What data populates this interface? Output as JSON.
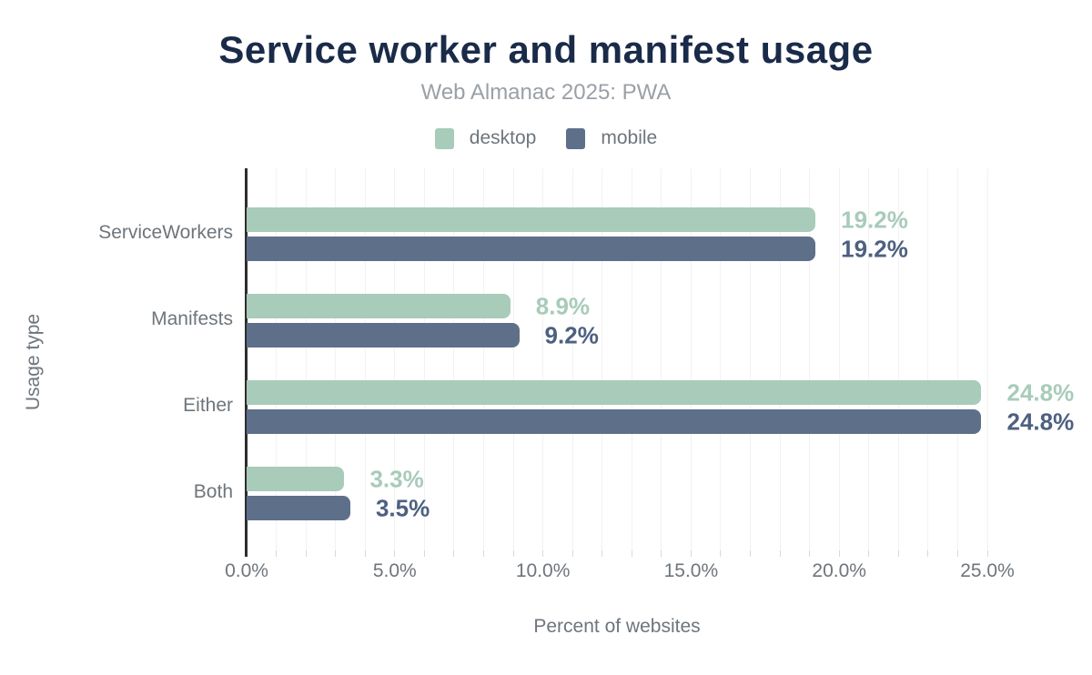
{
  "title": "Service worker and manifest usage",
  "subtitle": "Web Almanac 2025: PWA",
  "colors": {
    "title": "#1a2b49",
    "subtitle": "#9aa0a6",
    "muted_text": "#6e757c",
    "axis_line": "#2e2e2e",
    "gridline": "#f2f2f3",
    "tick_mark": "#d9d9d9",
    "desktop": "#a8cbba",
    "mobile": "#5e7089",
    "mobile_value_label": "#4d6080"
  },
  "chart_data": {
    "type": "bar",
    "orientation": "horizontal",
    "title": "Service worker and manifest usage",
    "subtitle": "Web Almanac 2025: PWA",
    "categories": [
      "ServiceWorkers",
      "Manifests",
      "Either",
      "Both"
    ],
    "series": [
      {
        "name": "desktop",
        "color": "#a8cbba",
        "label_color": "#a8cbba",
        "values": [
          19.2,
          8.9,
          24.8,
          3.3
        ],
        "value_labels": [
          "19.2%",
          "8.9%",
          "24.8%",
          "3.3%"
        ]
      },
      {
        "name": "mobile",
        "color": "#5e7089",
        "label_color": "#4d6080",
        "values": [
          19.2,
          9.2,
          24.8,
          3.5
        ],
        "value_labels": [
          "19.2%",
          "9.2%",
          "24.8%",
          "3.5%"
        ]
      }
    ],
    "xlabel": "Percent of websites",
    "ylabel": "Usage type",
    "xlim": [
      0,
      25
    ],
    "x_ticks": [
      {
        "value": 0,
        "label": "0.0%"
      },
      {
        "value": 5,
        "label": "5.0%"
      },
      {
        "value": 10,
        "label": "10.0%"
      },
      {
        "value": 15,
        "label": "15.0%"
      },
      {
        "value": 20,
        "label": "20.0%"
      },
      {
        "value": 25,
        "label": "25.0%"
      }
    ],
    "minor_grid_step": 1,
    "grid": "vertical, minor every 1%",
    "legend_position": "top center"
  }
}
